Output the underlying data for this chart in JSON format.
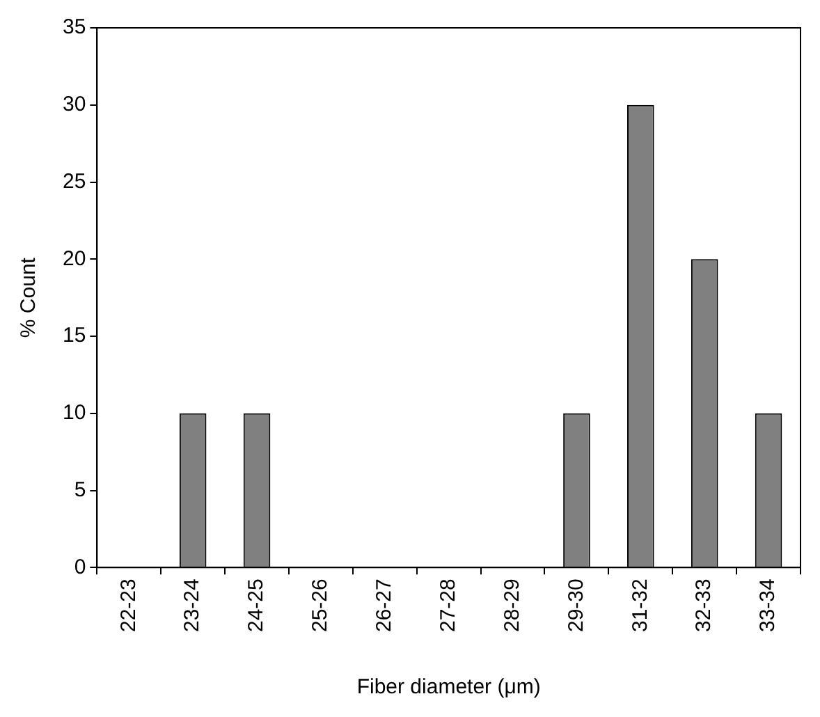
{
  "chart_data": {
    "type": "bar",
    "xlabel": "Fiber diameter (μm)",
    "ylabel": "% Count",
    "categories": [
      "22-23",
      "23-24",
      "24-25",
      "25-26",
      "26-27",
      "27-28",
      "28-29",
      "29-30",
      "31-32",
      "32-33",
      "33-34"
    ],
    "values": [
      0,
      10,
      10,
      0,
      0,
      0,
      0,
      10,
      30,
      20,
      10
    ],
    "color": "#808080",
    "ylim": [
      0,
      35
    ],
    "yticks": [
      0,
      5,
      10,
      15,
      20,
      25,
      30,
      35
    ],
    "grid": false,
    "legend": false
  }
}
